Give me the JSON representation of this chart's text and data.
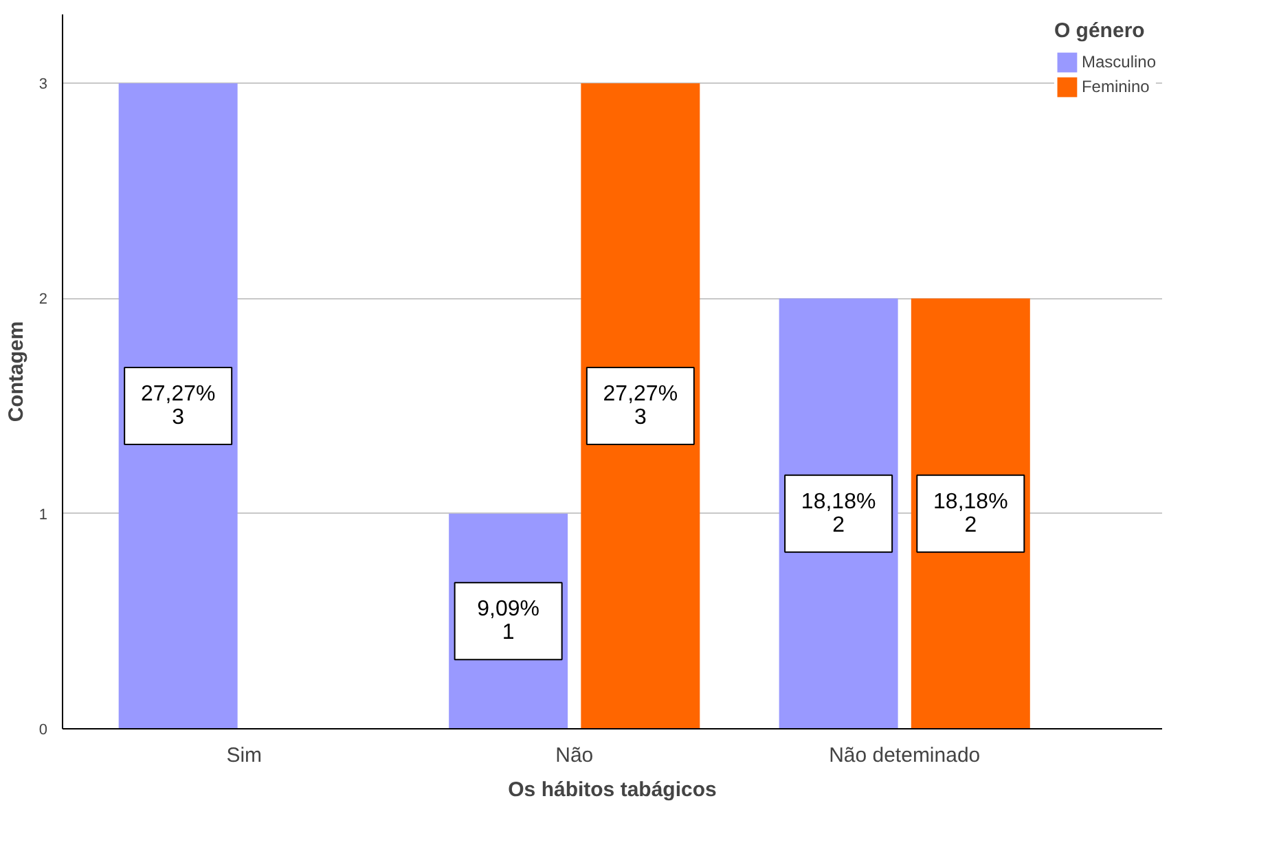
{
  "chart_data": {
    "type": "bar",
    "xlabel": "Os hábitos tabágicos",
    "ylabel": "Contagem",
    "legend_title": "O género",
    "categories": [
      "Sim",
      "Não",
      "Não deteminado"
    ],
    "series": [
      {
        "name": "Masculino",
        "color": "#9999ff",
        "values": [
          3,
          1,
          2
        ],
        "value_labels": [
          "27,27%\n3",
          "9,09%\n1",
          "18,18%\n2"
        ]
      },
      {
        "name": "Feminino",
        "color": "#ff6600",
        "values": [
          null,
          3,
          2
        ],
        "value_labels": [
          null,
          "27,27%\n3",
          "18,18%\n2"
        ]
      }
    ],
    "ylim": [
      0,
      3.32
    ],
    "yticks": [
      0,
      1,
      2,
      3
    ],
    "grid": "y",
    "legend": "top right"
  }
}
